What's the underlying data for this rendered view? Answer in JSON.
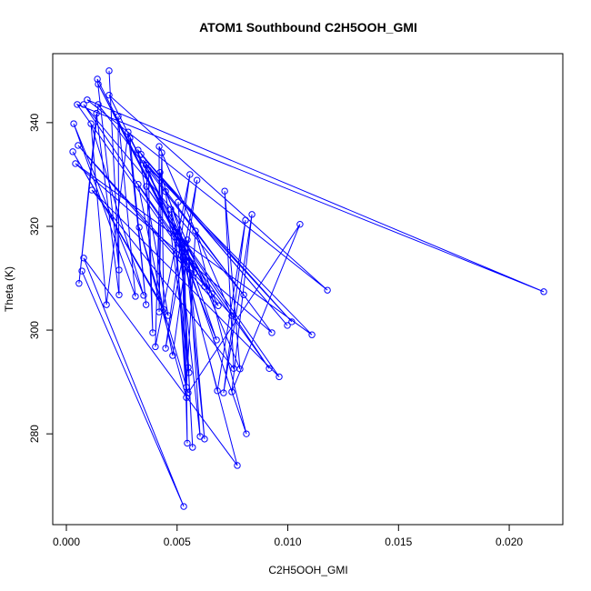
{
  "chart_data": {
    "type": "line",
    "title": "ATOM1 Southbound C2H5OOH_GMI",
    "xlabel": "C2H5OOH_GMI",
    "ylabel": "Theta (K)",
    "x": [
      0.00193,
      0.00238,
      0.0014,
      0.00579,
      0.00144,
      0.00624,
      0.00193,
      0.01179,
      0.00094,
      0.02156,
      0.00049,
      0.00657,
      0.00078,
      0.00801,
      0.00144,
      0.00057,
      0.00136,
      0.00238,
      0.00234,
      0.00312,
      0.00033,
      0.00349,
      0.00111,
      0.00181,
      0.00279,
      0.0036,
      0.00287,
      0.00686,
      0.00053,
      0.00747,
      0.00419,
      0.00419,
      0.00431,
      0.00439,
      0.00029,
      0.0046,
      0.00324,
      0.00998,
      0.00337,
      0.01018,
      0.00345,
      0.00928,
      0.00041,
      0.01109,
      0.0036,
      0.0039,
      0.0037,
      0.00678,
      0.00423,
      0.00402,
      0.00558,
      0.00448,
      0.0059,
      0.0048,
      0.00324,
      0.00916,
      0.00361,
      0.00961,
      0.00115,
      0.00756,
      0.00715,
      0.00784,
      0.00448,
      0.0055,
      0.00505,
      0.00554,
      0.00472,
      0.00682,
      0.00809,
      0.0071,
      0.00838,
      0.00747,
      0.01055,
      0.0055,
      0.00329,
      0.00542,
      0.00493,
      0.00542,
      0.00583,
      0.00813,
      0.00505,
      0.00604,
      0.00546,
      0.00624,
      0.00534,
      0.00546,
      0.00522,
      0.0057,
      0.00526,
      0.00772,
      0.00078,
      0.0053,
      0.0007
    ],
    "series": [
      {
        "color": "#0000ff",
        "values": [
          350.0,
          311.6,
          348.4,
          311.1,
          347.4,
          308.4,
          345.3,
          307.7,
          344.4,
          307.4,
          343.5,
          307.0,
          343.5,
          306.8,
          343.5,
          309,
          341.8,
          306.8,
          341.2,
          306.5,
          339.8,
          306.7,
          339.8,
          304.9,
          338.2,
          304.9,
          337,
          304.7,
          335.6,
          302.8,
          335.4,
          303.5,
          334.2,
          304,
          334.4,
          302.8,
          334.7,
          300.9,
          333.9,
          301.6,
          332.8,
          299.5,
          332.1,
          299.1,
          331.8,
          299.5,
          330.9,
          298.1,
          330.4,
          296.8,
          330,
          296.5,
          328.9,
          295.1,
          328.1,
          292.6,
          327.7,
          291,
          327,
          292.6,
          326.8,
          292.5,
          326.7,
          292.8,
          324.7,
          291.8,
          323.3,
          288.3,
          321.2,
          287.9,
          322.3,
          288.1,
          320.4,
          287.9,
          319.8,
          287,
          318.9,
          289,
          319.1,
          280,
          318.1,
          279.5,
          317.4,
          279,
          316.7,
          278.2,
          315.8,
          277.4,
          313.9,
          273.9,
          313.9,
          266,
          311.4
        ]
      }
    ],
    "xlim": [
      -0.000616,
      0.02242
    ],
    "ylim": [
      262.5,
      353.3
    ],
    "xticks": [
      {
        "value": 0,
        "label": "0.000"
      },
      0.005,
      {
        "value": 0.01,
        "label": "0.010"
      },
      0.015,
      {
        "value": 0.02,
        "label": "0.020"
      }
    ],
    "yticks": [
      280,
      300,
      320,
      340
    ]
  }
}
